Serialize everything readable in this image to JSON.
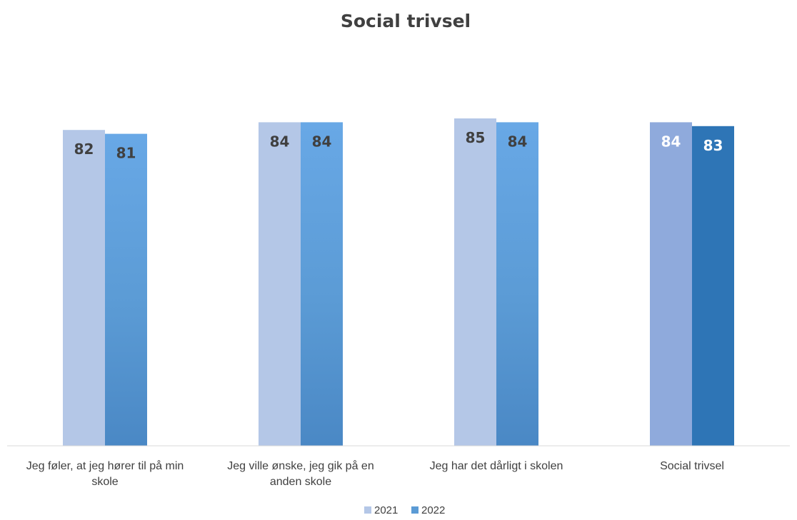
{
  "chart_data": {
    "type": "bar",
    "title": "Social trivsel",
    "xlabel": "",
    "ylabel": "",
    "ylim": [
      0,
      100
    ],
    "grid": false,
    "legend_position": "bottom",
    "categories": [
      [
        "Jeg føler, at jeg hører til på min",
        "skole"
      ],
      [
        "Jeg ville ønske, jeg gik på en",
        "anden skole"
      ],
      [
        "Jeg har det dårligt i skolen"
      ],
      [
        "Social trivsel"
      ]
    ],
    "series": [
      {
        "name": "2021",
        "values": [
          82,
          84,
          85,
          84
        ],
        "color": "#b4c7e7",
        "highlight_color": "#8faadc"
      },
      {
        "name": "2022",
        "values": [
          81,
          84,
          84,
          83
        ],
        "color": "#5b9bd5",
        "highlight_color": "#2e75b6"
      }
    ],
    "highlight_category_index": 3,
    "label_color": "#404040",
    "highlight_label_color": "#ffffff",
    "axis_color": "#d9d9d9"
  }
}
